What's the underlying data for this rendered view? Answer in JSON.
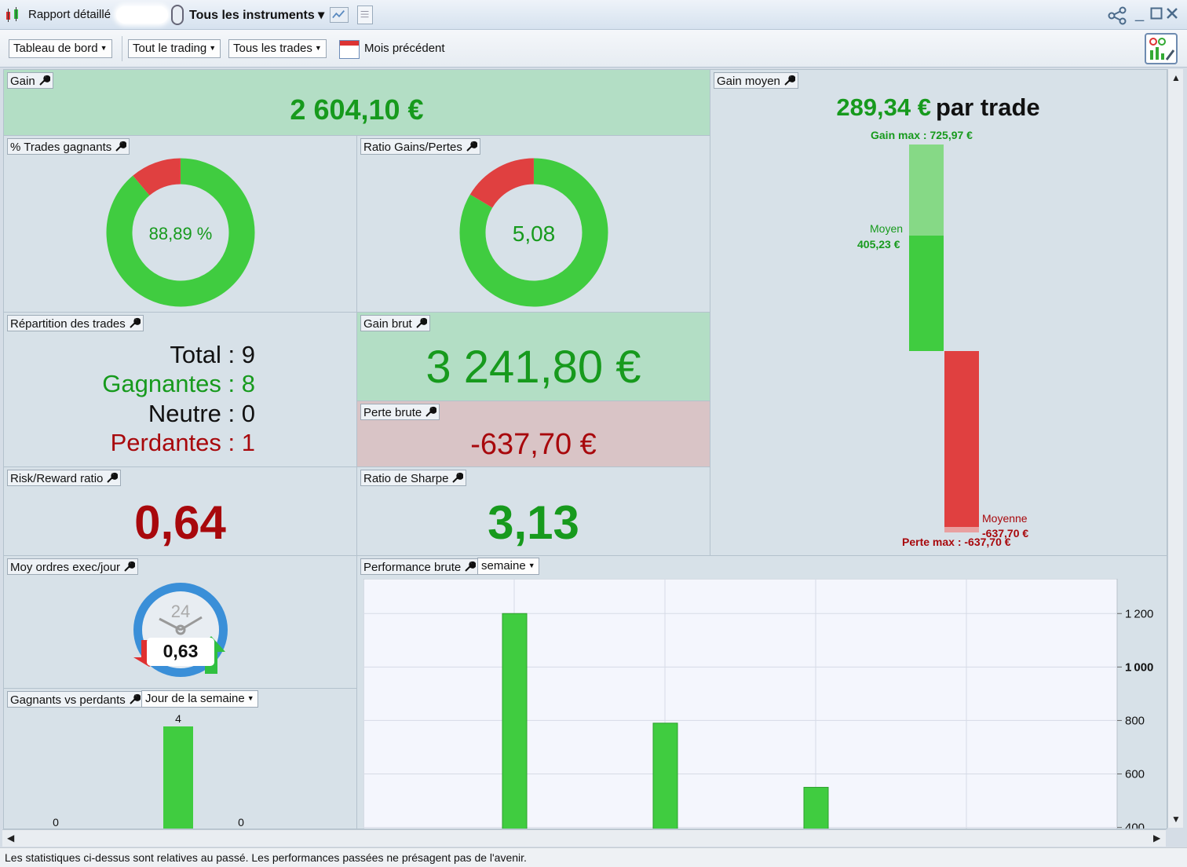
{
  "titlebar": {
    "title": "Rapport détaillé",
    "instruments": "Tous les instruments ▾"
  },
  "toolbar": {
    "dashboard": "Tableau de bord",
    "trading": "Tout le trading",
    "trades": "Tous les trades",
    "period": "Mois précédent"
  },
  "colors": {
    "green": "#179a1d",
    "bar_green": "#40cc40",
    "red_text": "#a8080c",
    "bar_red": "#e04040"
  },
  "panels": {
    "gain": {
      "title": "Gain",
      "value": "2 604,10 €"
    },
    "pct_win": {
      "title": "% Trades gagnants",
      "value": "88,89 %",
      "fraction": 0.8889
    },
    "ratio_gp": {
      "title": "Ratio Gains/Pertes",
      "value": "5,08",
      "fraction": 0.8356
    },
    "repartition": {
      "title": "Répartition des trades",
      "lines": [
        {
          "label": "Total : ",
          "value": "9"
        },
        {
          "label": "Gagnantes : ",
          "value": "8"
        },
        {
          "label": "Neutre : ",
          "value": "0"
        },
        {
          "label": "Perdantes : ",
          "value": "1"
        }
      ]
    },
    "gain_brut": {
      "title": "Gain brut",
      "value": "3 241,80 €"
    },
    "perte_brute": {
      "title": "Perte brute",
      "value": "-637,70 €"
    },
    "risk_reward": {
      "title": "Risk/Reward ratio",
      "value": "0,64"
    },
    "sharpe": {
      "title": "Ratio de Sharpe",
      "value": "3,13"
    },
    "orders": {
      "title": "Moy ordres exec/jour",
      "value": "0,63",
      "clock_label": "24"
    },
    "gain_moyen": {
      "title": "Gain moyen",
      "value": "289,34 €",
      "suffix": "par trade",
      "max_gain_label": "Gain max : 725,97 €",
      "avg_win_label": "Moyen",
      "avg_win_value": "405,23 €",
      "avg_loss_label": "Moyenne",
      "avg_loss_value": "-637,70 €",
      "max_loss_label": "Perte max : -637,70 €",
      "max_gain": 725.97,
      "avg_win": 405.23,
      "avg_loss": -637.7,
      "max_loss": -637.7
    },
    "perf": {
      "title": "Performance brute",
      "period": "semaine"
    },
    "winloss": {
      "title": "Gagnants vs perdants",
      "period": "Jour de la semaine",
      "bar_label": "4"
    }
  },
  "chart_data": [
    {
      "type": "bar",
      "title": "Performance brute",
      "categories": [
        "",
        "",
        "",
        "",
        ""
      ],
      "values": [
        null,
        1200,
        790,
        550,
        null
      ],
      "yticks": [
        400,
        600,
        800,
        1000,
        1200
      ],
      "ylim": [
        390,
        1330
      ],
      "grid": true
    },
    {
      "type": "bar",
      "title": "Gagnants vs perdants",
      "categories": [
        "",
        "",
        ""
      ],
      "values": [
        0,
        4,
        0
      ],
      "data_labels": [
        "0",
        "4",
        "0"
      ]
    }
  ],
  "footer": "Les statistiques ci-dessus sont relatives au passé. Les performances passées ne présagent pas de l'avenir."
}
